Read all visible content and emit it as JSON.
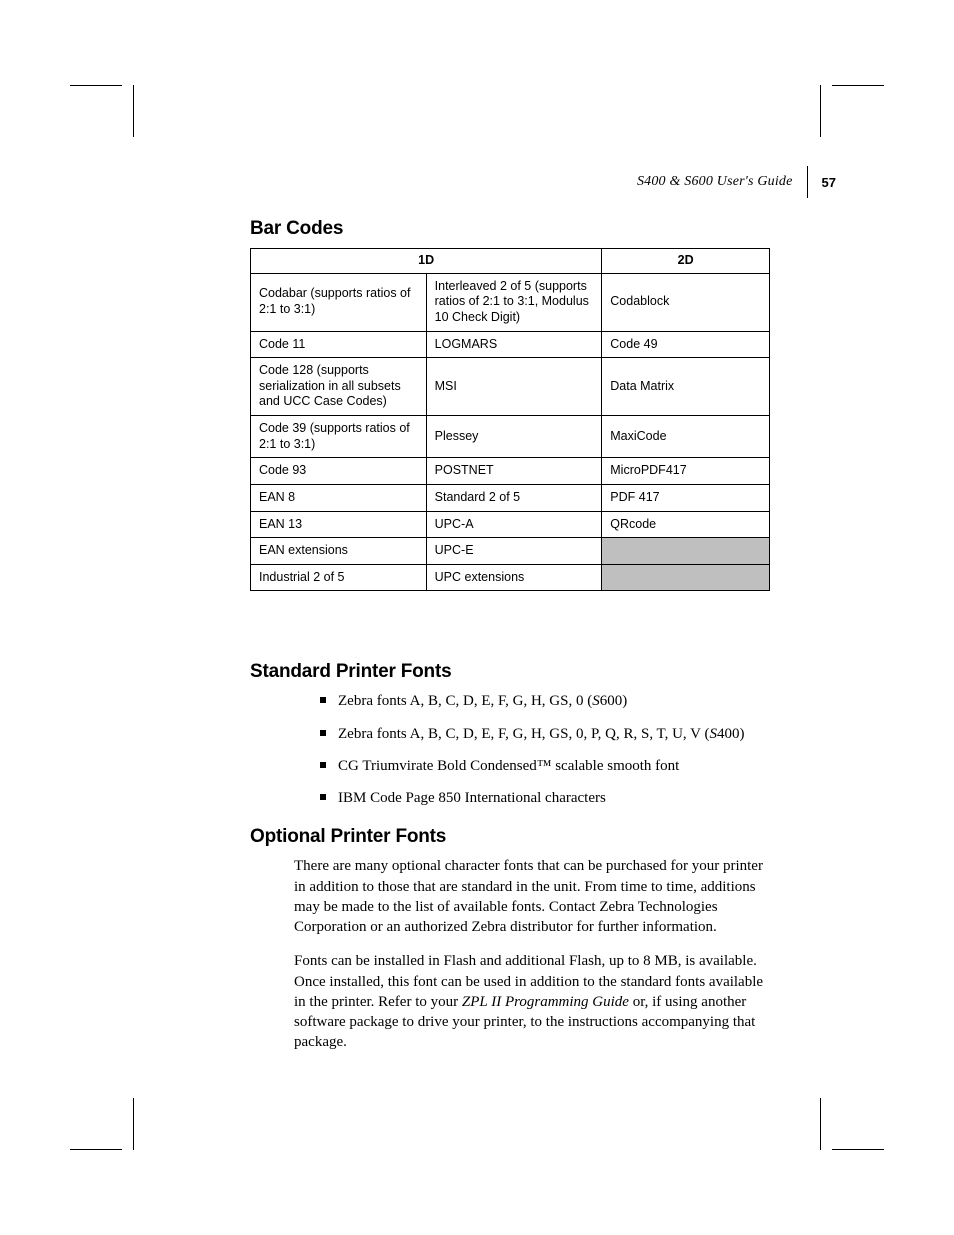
{
  "header": {
    "title_prefix": "S",
    "title_mid": "400 & ",
    "title_prefix2": "S",
    "title_suffix": "600 User's Guide",
    "page": "57"
  },
  "sections": {
    "barcodes": {
      "heading": "Bar Codes",
      "col1_header": "1D",
      "col2_header": "2D",
      "rows": [
        [
          "Codabar (supports ratios of 2:1 to 3:1)",
          "Interleaved 2 of 5 (supports ratios of 2:1 to 3:1, Modulus 10 Check Digit)",
          "Codablock"
        ],
        [
          "Code 11",
          "LOGMARS",
          "Code 49"
        ],
        [
          "Code 128 (supports serialization in all subsets and UCC Case Codes)",
          "MSI",
          "Data Matrix"
        ],
        [
          "Code 39 (supports ratios of 2:1 to 3:1)",
          "Plessey",
          "MaxiCode"
        ],
        [
          "Code 93",
          "POSTNET",
          "MicroPDF417"
        ],
        [
          "EAN 8",
          "Standard 2 of 5",
          "PDF 417"
        ],
        [
          "EAN 13",
          "UPC-A",
          "QRcode"
        ],
        [
          "EAN extensions",
          "UPC-E",
          ""
        ],
        [
          "Industrial 2 of 5",
          "UPC extensions",
          ""
        ]
      ]
    },
    "standard_fonts": {
      "heading": "Standard Printer Fonts",
      "items": [
        {
          "pre": "Zebra fonts A, B, C, D, E, F, G, H, GS, 0 (",
          "it": "S",
          "post": "600)"
        },
        {
          "pre": "Zebra fonts A, B, C, D, E, F, G, H, GS, 0, P, Q, R, S, T, U, V (",
          "it": "S",
          "post": "400)"
        },
        {
          "pre": "CG Triumvirate Bold Condensed™ scalable smooth font",
          "it": "",
          "post": ""
        },
        {
          "pre": "IBM Code Page 850 International characters",
          "it": "",
          "post": ""
        }
      ]
    },
    "optional_fonts": {
      "heading": "Optional Printer Fonts",
      "para1": "There are many optional character fonts that can be purchased for your printer in addition to those that are standard in the unit.  From time to time, additions may be made to the list of available fonts.  Contact Zebra Technologies Corporation or an authorized Zebra distributor for further information.",
      "para2_pre": "Fonts can be installed in Flash and additional Flash, up to 8 MB, is available.  Once installed, this font can be used in addition to the standard fonts available in the printer.  Refer to your ",
      "para2_it": "ZPL II Programming Guide",
      "para2_post": " or, if using another software package to drive your printer, to the instructions accompanying that package."
    }
  },
  "layout": {
    "col_widths": [
      "176px",
      "176px",
      "168px"
    ]
  }
}
